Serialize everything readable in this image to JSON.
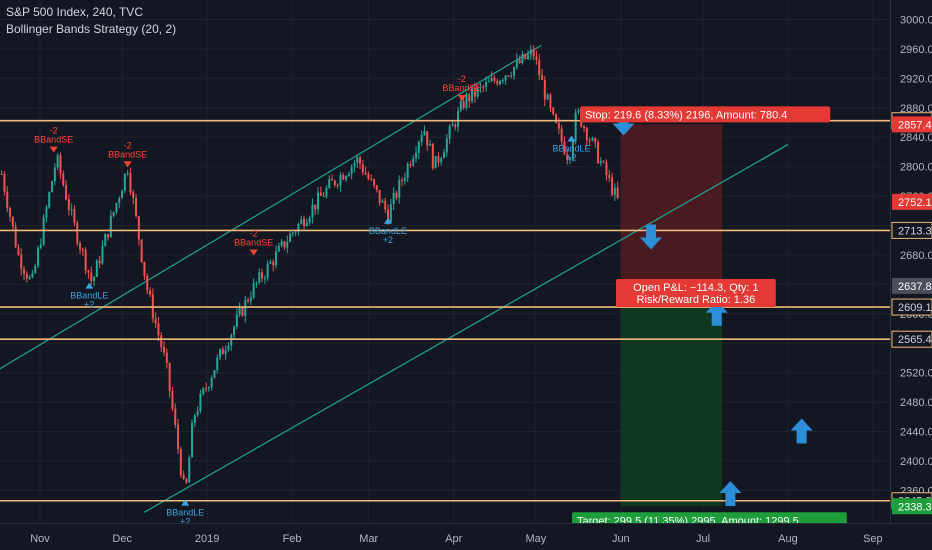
{
  "header": {
    "symbol": "S&P 500 Index, 240, TVC",
    "strategy": "Bollinger Bands Strategy (20, 2)"
  },
  "chart_data": {
    "type": "candlestick",
    "ylim": [
      2320,
      3030
    ],
    "y_ticks": [
      3000.0,
      2960.0,
      2920.0,
      2880.0,
      2840.0,
      2800.0,
      2760.0,
      2720.0,
      2680.0,
      2640.0,
      2600.0,
      2560.0,
      2520.0,
      2480.0,
      2440.0,
      2400.0,
      2360.0
    ],
    "x_labels": [
      {
        "label": "Nov",
        "date": "2018-11-01"
      },
      {
        "label": "Dec",
        "date": "2018-12-01"
      },
      {
        "label": "2019",
        "date": "2019-01-01"
      },
      {
        "label": "Feb",
        "date": "2019-02-01"
      },
      {
        "label": "Mar",
        "date": "2019-03-01"
      },
      {
        "label": "Apr",
        "date": "2019-04-01"
      },
      {
        "label": "May",
        "date": "2019-05-01"
      },
      {
        "label": "Jun",
        "date": "2019-06-01"
      },
      {
        "label": "Jul",
        "date": "2019-07-01"
      },
      {
        "label": "Aug",
        "date": "2019-08-01"
      },
      {
        "label": "Sep",
        "date": "2019-09-01"
      }
    ],
    "price_path": [
      {
        "date": "2018-10-18",
        "price": 2790
      },
      {
        "date": "2018-10-24",
        "price": 2680
      },
      {
        "date": "2018-10-29",
        "price": 2640
      },
      {
        "date": "2018-11-07",
        "price": 2812
      },
      {
        "date": "2018-11-13",
        "price": 2725
      },
      {
        "date": "2018-11-20",
        "price": 2642
      },
      {
        "date": "2018-11-28",
        "price": 2740
      },
      {
        "date": "2018-12-03",
        "price": 2800
      },
      {
        "date": "2018-12-10",
        "price": 2635
      },
      {
        "date": "2018-12-17",
        "price": 2530
      },
      {
        "date": "2018-12-24",
        "price": 2350
      },
      {
        "date": "2018-12-27",
        "price": 2460
      },
      {
        "date": "2019-01-04",
        "price": 2530
      },
      {
        "date": "2019-01-17",
        "price": 2630
      },
      {
        "date": "2019-01-31",
        "price": 2705
      },
      {
        "date": "2019-02-15",
        "price": 2775
      },
      {
        "date": "2019-02-25",
        "price": 2810
      },
      {
        "date": "2019-03-08",
        "price": 2735
      },
      {
        "date": "2019-03-21",
        "price": 2855
      },
      {
        "date": "2019-03-25",
        "price": 2800
      },
      {
        "date": "2019-04-05",
        "price": 2890
      },
      {
        "date": "2019-04-23",
        "price": 2935
      },
      {
        "date": "2019-04-30",
        "price": 2955
      },
      {
        "date": "2019-05-07",
        "price": 2865
      },
      {
        "date": "2019-05-13",
        "price": 2812
      },
      {
        "date": "2019-05-16",
        "price": 2875
      },
      {
        "date": "2019-05-23",
        "price": 2820
      },
      {
        "date": "2019-05-31",
        "price": 2752
      }
    ],
    "levels": [
      {
        "label": "2862.4",
        "value": 2862.4,
        "kind": "line"
      },
      {
        "label": "2713.3",
        "value": 2713.3,
        "kind": "line"
      },
      {
        "label": "2609.1",
        "value": 2609.1,
        "kind": "line"
      },
      {
        "label": "2565.4",
        "value": 2565.4,
        "kind": "line"
      },
      {
        "label": "2345.8",
        "value": 2345.8,
        "kind": "line"
      }
    ],
    "price_tags": [
      {
        "label": "2857.4",
        "value": 2857.4,
        "color": "#e53935"
      },
      {
        "label": "2752.1",
        "value": 2752.1,
        "color": "#e53935"
      },
      {
        "label": "2637.8",
        "value": 2637.8,
        "color": "#4a4e59"
      },
      {
        "label": "2338.3",
        "value": 2338.3,
        "color": "#1e9e3a"
      }
    ],
    "position": {
      "entry": 2637.8,
      "stop": 2857.4,
      "target": 2338.3,
      "start_date": "2019-06-01",
      "end_date": "2019-07-08",
      "stop_text": "Stop: 219.6 (8.33%) 2196, Amount: 780.4",
      "target_text": "Target: 299.5 (11.35%) 2995, Amount: 1299.5",
      "pnl_text": "Open P&L: −114.3, Qty: 1",
      "rr_text": "Risk/Reward Ratio: 1.36"
    },
    "channel_lines": [
      {
        "from": {
          "date": "2018-10-06",
          "price": 2500
        },
        "to": {
          "date": "2019-05-03",
          "price": 2965
        }
      },
      {
        "from": {
          "date": "2018-12-09",
          "price": 2330
        },
        "to": {
          "date": "2019-08-01",
          "price": 2830
        }
      }
    ],
    "signals": [
      {
        "type": "short",
        "date": "2018-11-06",
        "price": 2815,
        "label": "BBandSE",
        "qty": "-2"
      },
      {
        "type": "short",
        "date": "2018-12-03",
        "price": 2795,
        "label": "BBandSE",
        "qty": "-2"
      },
      {
        "type": "long",
        "date": "2018-11-19",
        "price": 2645,
        "label": "BBandLE",
        "qty": "+2"
      },
      {
        "type": "long",
        "date": "2018-12-24",
        "price": 2350,
        "label": "BBandLE",
        "qty": "+2"
      },
      {
        "type": "long",
        "date": "2019-03-08",
        "price": 2733,
        "label": "BBandLE",
        "qty": "+2"
      },
      {
        "type": "short",
        "date": "2019-01-18",
        "price": 2675,
        "label": "BBandSE",
        "qty": "-2"
      },
      {
        "type": "short",
        "date": "2019-04-04",
        "price": 2885,
        "label": "BBandSE",
        "qty": "-2"
      },
      {
        "type": "long",
        "date": "2019-05-14",
        "price": 2845,
        "label": "BBandLE",
        "qty": "+2"
      }
    ],
    "arrows": [
      {
        "date": "2019-06-02",
        "price": 2860,
        "direction": "down"
      },
      {
        "date": "2019-06-12",
        "price": 2705,
        "direction": "down"
      },
      {
        "date": "2019-07-06",
        "price": 2600,
        "direction": "up"
      },
      {
        "date": "2019-08-06",
        "price": 2440,
        "direction": "up"
      },
      {
        "date": "2019-07-11",
        "price": 2355,
        "direction": "up"
      }
    ],
    "colors": {
      "background": "#131722",
      "up": "#26a69a",
      "down": "#ef5350",
      "level": "#f0b97a",
      "channel": "#1ea78f",
      "stop_zone": "#4a1a21",
      "target_zone": "#10371f",
      "arrow": "#2b8ed6",
      "grid": "#1e222d"
    }
  }
}
